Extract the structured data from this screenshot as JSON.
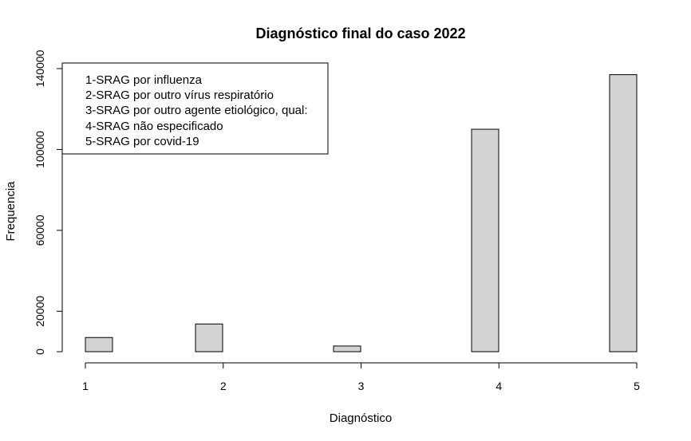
{
  "chart_data": {
    "type": "bar",
    "title": "Diagnóstico final do caso 2022",
    "xlabel": "Diagnóstico",
    "ylabel": "Frequencia",
    "categories": [
      "1",
      "2",
      "3",
      "4",
      "5"
    ],
    "values": [
      7000,
      13700,
      2800,
      110000,
      137000
    ],
    "x_ticks": [
      "1",
      "2",
      "3",
      "4",
      "5"
    ],
    "y_ticks": [
      0,
      20000,
      60000,
      100000,
      140000
    ],
    "y_tick_labels": [
      "0",
      "20000",
      "60000",
      "100000",
      "140000"
    ],
    "ylim": [
      0,
      140000
    ],
    "xlim": [
      1,
      5
    ],
    "bar_fill": "#d3d3d3",
    "bar_stroke": "#000000",
    "legend": {
      "placement": "top-left",
      "entries": [
        "1-SRAG por influenza",
        "2-SRAG por outro vírus respiratório",
        "3-SRAG por outro agente etiológico, qual:",
        "4-SRAG não especificado",
        "5-SRAG por covid-19"
      ]
    },
    "grid": false
  }
}
